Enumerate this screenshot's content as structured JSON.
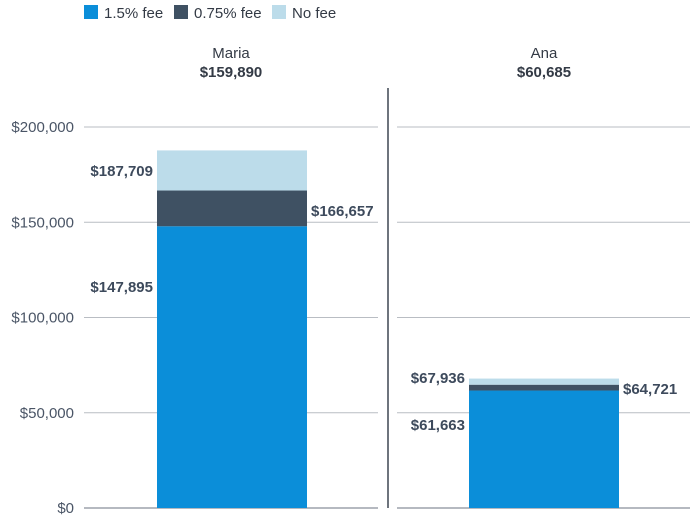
{
  "chart_data": {
    "type": "bar",
    "stacked": true,
    "legend": {
      "placement": "top-left",
      "items": [
        {
          "label": "1.5% fee",
          "color": "#0b8ed9"
        },
        {
          "label": "0.75% fee",
          "color": "#3f5163"
        },
        {
          "label": "No fee",
          "color": "#bcdcea"
        }
      ]
    },
    "y_axis": {
      "min": 0,
      "max": 200000,
      "ticks": [
        0,
        50000,
        100000,
        150000,
        200000
      ],
      "tick_labels": [
        "$0",
        "$50,000",
        "$100,000",
        "$150,000",
        "$200,000"
      ]
    },
    "grid": true,
    "panels": [
      {
        "name": "Maria",
        "total_label": "$159,890",
        "values": {
          "fee_1_5": 147895,
          "fee_0_75": 166657,
          "no_fee": 187709
        },
        "labels": {
          "fee_1_5": "$147,895",
          "fee_0_75": "$166,657",
          "no_fee": "$187,709"
        }
      },
      {
        "name": "Ana",
        "total_label": "$60,685",
        "values": {
          "fee_1_5": 61663,
          "fee_0_75": 64721,
          "no_fee": 67936
        },
        "labels": {
          "fee_1_5": "$61,663",
          "fee_0_75": "$64,721",
          "no_fee": "$67,936"
        }
      }
    ]
  }
}
